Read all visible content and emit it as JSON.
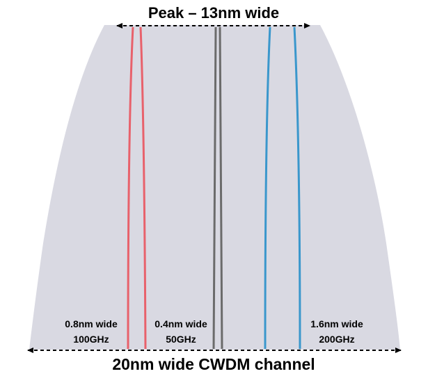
{
  "top_label": "Peak – 13nm wide",
  "bottom_label": "20nm wide CWDM channel",
  "filters": [
    {
      "width_label": "0.8nm wide",
      "freq_label": "100GHz",
      "color": "#e8616b"
    },
    {
      "width_label": "0.4nm wide",
      "freq_label": "50GHz",
      "color": "#6b6b6b"
    },
    {
      "width_label": "1.6nm wide",
      "freq_label": "200GHz",
      "color": "#3a97cc"
    }
  ],
  "colors": {
    "channel_fill": "#d9d9e2",
    "arrow": "#000000"
  }
}
